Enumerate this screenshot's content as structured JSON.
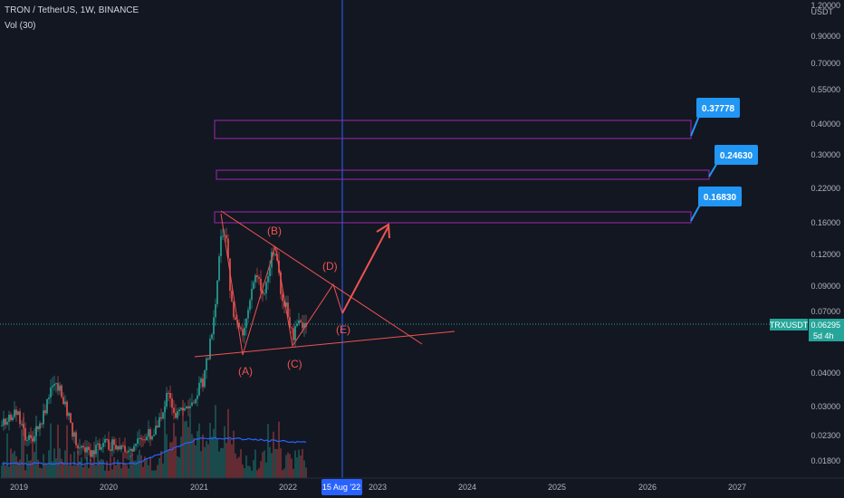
{
  "header": {
    "symbol_line": "TRON / TetherUS, 1W, BINANCE",
    "indicator_line": "Vol (30)"
  },
  "price_axis": {
    "currency": "USDT",
    "labels": [
      "1.20000",
      "0.90000",
      "0.70000",
      "0.55000",
      "0.40000",
      "0.30000",
      "0.22000",
      "0.16000",
      "0.12000",
      "0.09000",
      "0.07000",
      "0.04000",
      "0.03000",
      "0.02300",
      "0.01800"
    ],
    "current_symbol": "TRXUSDT",
    "current_price": "0.06295",
    "countdown": "5d 4h"
  },
  "time_axis": {
    "labels": [
      "2019",
      "2020",
      "2021",
      "2022",
      "2023",
      "2024",
      "2025",
      "2026",
      "2027"
    ],
    "crosshair_date": "15 Aug '22"
  },
  "targets": [
    {
      "label": "0.37778"
    },
    {
      "label": "0.24630"
    },
    {
      "label": "0.16830"
    }
  ],
  "wave_labels": [
    "(A)",
    "(B)",
    "(C)",
    "(D)",
    "(E)"
  ],
  "colors": {
    "background": "#131722",
    "up": "#26a69a",
    "down": "#ef5350",
    "pattern": "#ef5350",
    "zones": "#9c27b0",
    "callout": "#2196f3",
    "volume_ma": "#2962ff",
    "crosshair": "#2962ff"
  },
  "chart_data": {
    "type": "candlestick",
    "symbol": "TRXUSDT",
    "timeframe": "1W",
    "log_scale": true,
    "ylim": [
      0.016,
      1.2
    ],
    "xlim": [
      "2018-10",
      "2027-06"
    ],
    "grid": false,
    "current_price": 0.06295,
    "target_zones": [
      0.37778,
      0.2463,
      0.1683
    ],
    "pattern": "contracting triangle (A)-(B)-(C)-(D)-(E)"
  }
}
